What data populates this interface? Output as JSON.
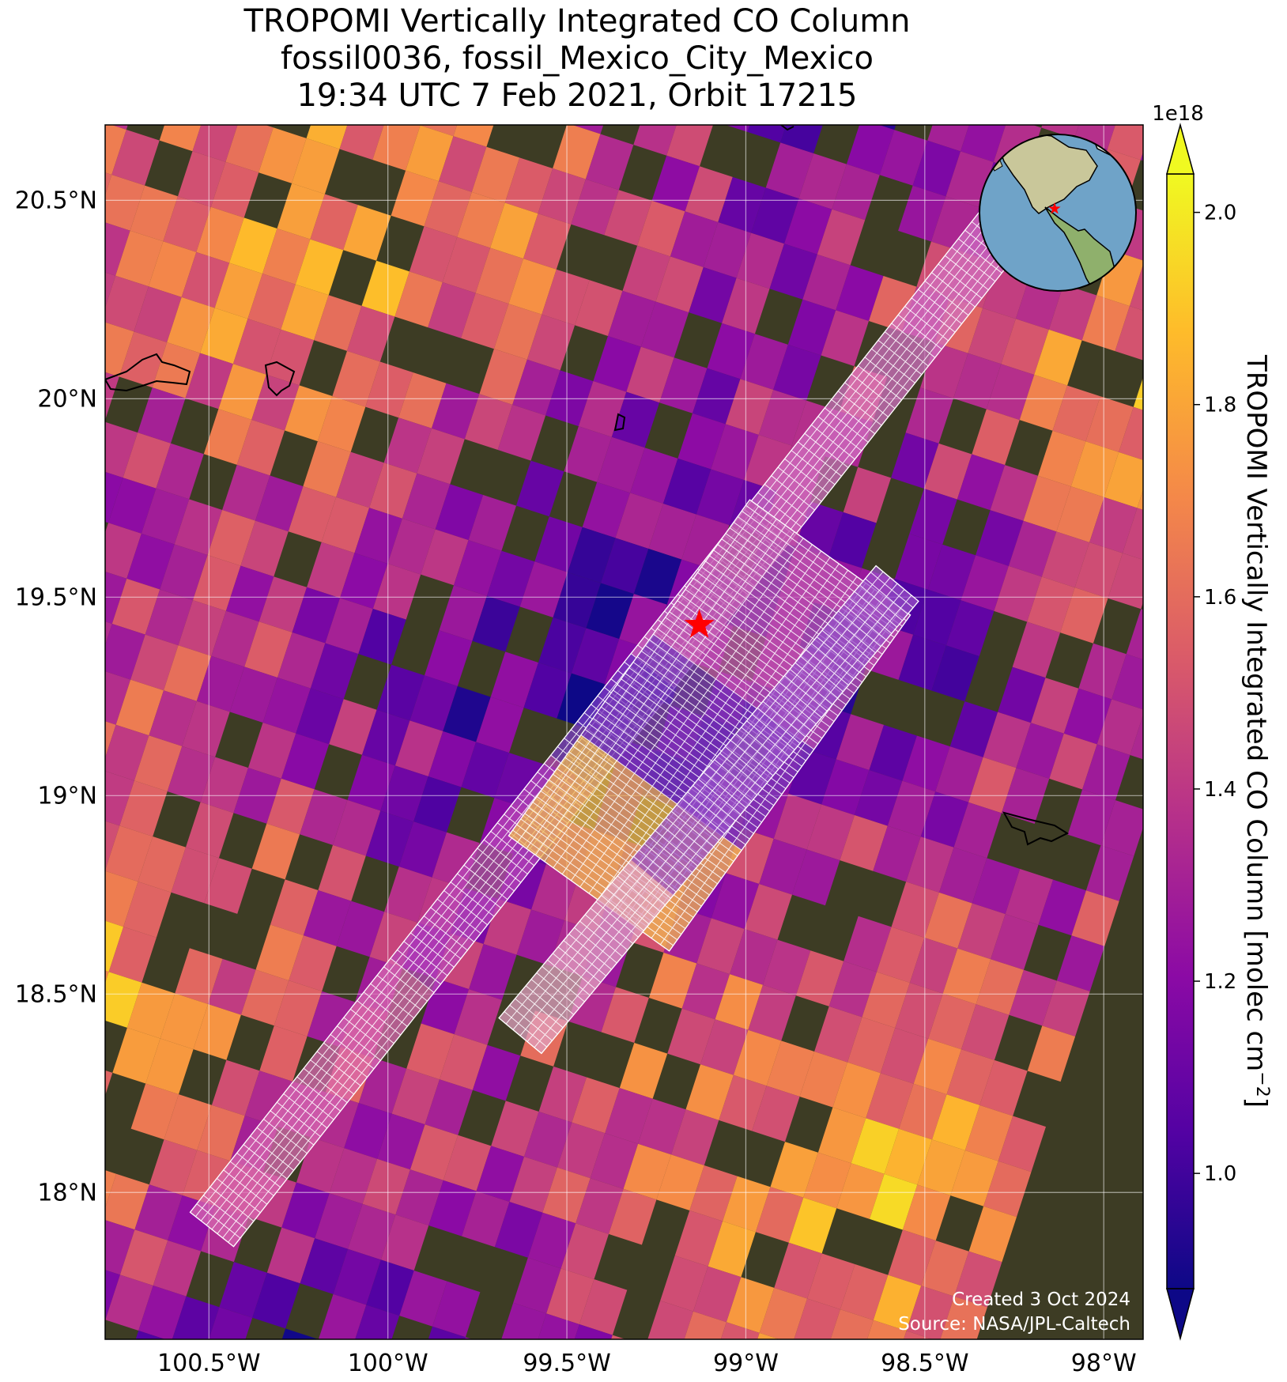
{
  "title": {
    "line1": "TROPOMI Vertically Integrated CO Column",
    "line2": "fossil0036, fossil_Mexico_City_Mexico",
    "line3": "19:34 UTC 7 Feb 2021, Orbit 17215"
  },
  "map": {
    "lon_range": [
      -100.79,
      -97.89
    ],
    "lat_range": [
      17.63,
      20.69
    ],
    "lon_ticks": [
      "100.5°W",
      "100°W",
      "99.5°W",
      "99°W",
      "98.5°W",
      "98°W"
    ],
    "lon_tick_values": [
      -100.5,
      -100.0,
      -99.5,
      -99.0,
      -98.5,
      -98.0
    ],
    "lat_ticks": [
      "20.5°N",
      "20°N",
      "19.5°N",
      "19°N",
      "18.5°N",
      "18°N"
    ],
    "lat_tick_values": [
      20.5,
      20.0,
      19.5,
      19.0,
      18.5,
      18.0
    ],
    "gridlines": true,
    "basemap": "satellite-imagery",
    "target": {
      "name": "target-star",
      "lon": -99.13,
      "lat": 19.43,
      "color": "#ff0000"
    },
    "overlay": "white-footprint-grid",
    "inset": "globe-locator"
  },
  "colorbar": {
    "label": "TROPOMI Vertically Integrated CO Column [molec cm$^{-2}$]",
    "label_main": "TROPOMI Vertically Integrated CO Column [molec cm",
    "label_sup": "−2",
    "label_end": "]",
    "exponent": "1e18",
    "ticks": [
      "1.0",
      "1.2",
      "1.4",
      "1.6",
      "1.8",
      "2.0"
    ],
    "tick_values": [
      1.0,
      1.2,
      1.4,
      1.6,
      1.8,
      2.0
    ],
    "range": [
      0.88,
      2.04
    ],
    "colormap": "plasma",
    "extend": "both"
  },
  "credits": {
    "created": "Created 3 Oct 2024",
    "source": "Source: NASA/JPL-Caltech"
  },
  "colors": {
    "plasma": [
      "#0d0887",
      "#5302a3",
      "#8b0aa5",
      "#b83289",
      "#db5c68",
      "#f48849",
      "#febc2a",
      "#f0f921"
    ],
    "land_dark": "#3a3a20",
    "land_mid": "#6b6340",
    "ocean": "#6fa3c8",
    "globe_land": "#9fbf7a"
  }
}
